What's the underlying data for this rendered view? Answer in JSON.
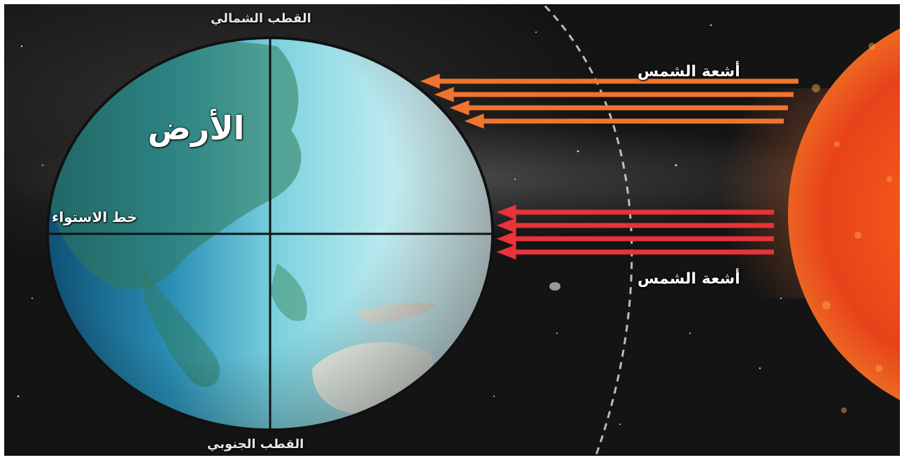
{
  "labels": {
    "north_pole": "القطب الشمالي",
    "south_pole": "القطب الجنوبي",
    "earth": "الأرض",
    "equator": "خط الاستواء",
    "sun_rays_top": "أشعة الشمس",
    "sun_rays_bottom": "أشعة الشمس"
  },
  "colors": {
    "space": "#141414",
    "ocean_dark": "#1f6f96",
    "ocean_light": "#bfe9ef",
    "globe_outline": "#111111",
    "rays_top": "#f0742e",
    "rays_bottom": "#e8333a",
    "sun_core": "#f4531a",
    "sun_edge": "#ffb04a",
    "orbit_line": "#d8d8d8",
    "text": "#ffffff"
  }
}
